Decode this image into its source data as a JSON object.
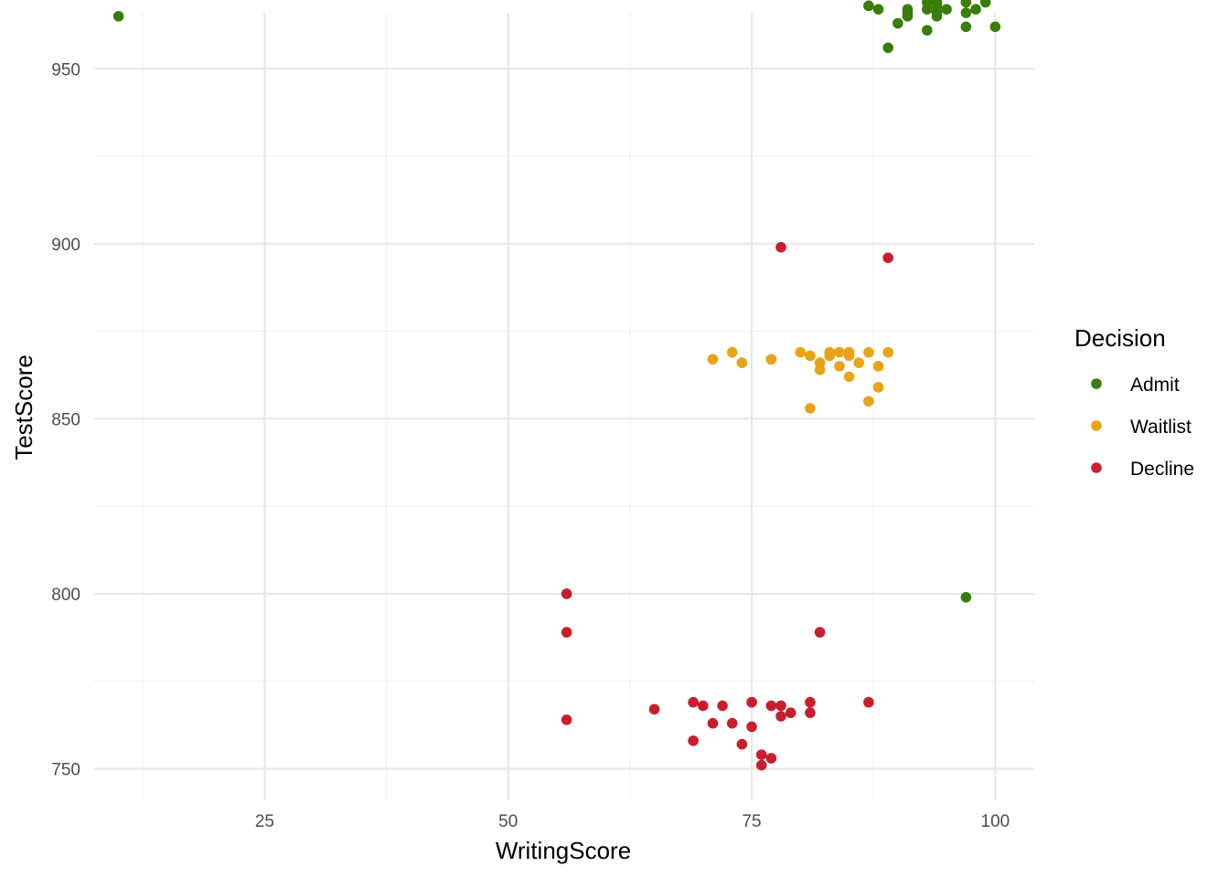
{
  "chart_data": {
    "type": "scatter",
    "title": "",
    "xlabel": "WritingScore",
    "ylabel": "TestScore",
    "xlim": [
      7.5,
      104
    ],
    "ylim": [
      741,
      966
    ],
    "x_ticks": [
      25,
      50,
      75,
      100
    ],
    "y_ticks": [
      750,
      800,
      850,
      900,
      950
    ],
    "x_minor": [
      12.5,
      37.5,
      62.5,
      87.5
    ],
    "y_minor": [
      775,
      825,
      875,
      925
    ],
    "grid": true,
    "legend": {
      "title": "Decision",
      "position": "right"
    },
    "series": [
      {
        "name": "Admit",
        "color": "#3a7d0a",
        "points": [
          [
            10,
            965
          ],
          [
            87,
            968
          ],
          [
            88,
            967
          ],
          [
            89,
            956
          ],
          [
            90,
            963
          ],
          [
            91,
            965
          ],
          [
            91,
            966
          ],
          [
            91,
            967
          ],
          [
            93,
            961
          ],
          [
            93,
            967
          ],
          [
            93,
            969
          ],
          [
            94,
            965
          ],
          [
            94,
            966
          ],
          [
            94,
            968
          ],
          [
            94,
            969
          ],
          [
            95,
            967
          ],
          [
            97,
            962
          ],
          [
            97,
            966
          ],
          [
            97,
            969
          ],
          [
            98,
            967
          ],
          [
            99,
            969
          ],
          [
            100,
            962
          ],
          [
            97,
            799
          ]
        ]
      },
      {
        "name": "Waitlist",
        "color": "#e8a317",
        "points": [
          [
            71,
            867
          ],
          [
            73,
            869
          ],
          [
            74,
            866
          ],
          [
            77,
            867
          ],
          [
            77,
            867
          ],
          [
            80,
            869
          ],
          [
            81,
            868
          ],
          [
            81,
            853
          ],
          [
            82,
            866
          ],
          [
            82,
            864
          ],
          [
            83,
            869
          ],
          [
            83,
            868
          ],
          [
            84,
            869
          ],
          [
            84,
            865
          ],
          [
            85,
            869
          ],
          [
            85,
            868
          ],
          [
            85,
            862
          ],
          [
            86,
            866
          ],
          [
            87,
            869
          ],
          [
            87,
            855
          ],
          [
            88,
            865
          ],
          [
            88,
            859
          ],
          [
            89,
            869
          ]
        ]
      },
      {
        "name": "Decline",
        "color": "#c81e2d",
        "points": [
          [
            78,
            899
          ],
          [
            89,
            896
          ],
          [
            56,
            800
          ],
          [
            56,
            789
          ],
          [
            82,
            789
          ],
          [
            56,
            764
          ],
          [
            65,
            767
          ],
          [
            69,
            769
          ],
          [
            69,
            758
          ],
          [
            70,
            768
          ],
          [
            71,
            763
          ],
          [
            72,
            768
          ],
          [
            73,
            763
          ],
          [
            74,
            757
          ],
          [
            75,
            769
          ],
          [
            75,
            762
          ],
          [
            76,
            754
          ],
          [
            76,
            751
          ],
          [
            77,
            753
          ],
          [
            77,
            768
          ],
          [
            78,
            768
          ],
          [
            78,
            765
          ],
          [
            79,
            766
          ],
          [
            81,
            769
          ],
          [
            81,
            766
          ],
          [
            87,
            769
          ]
        ]
      }
    ]
  }
}
